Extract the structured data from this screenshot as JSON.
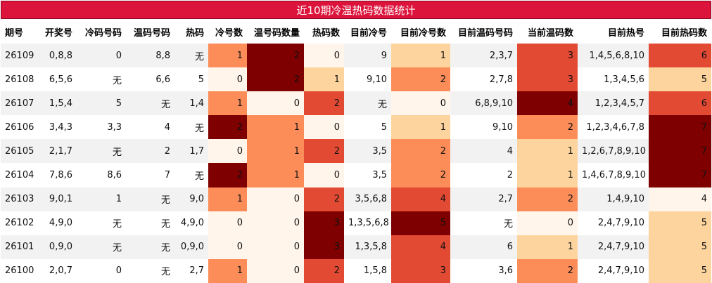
{
  "title": "近10期冷温热码数据统计",
  "headers": [
    "期号",
    "开奖号",
    "冷码号码",
    "温码号码",
    "热码",
    "冷号数",
    "温号码数量",
    "热码数",
    "目前冷号",
    "目前冷号数",
    "目前温码号码",
    "当前温码数",
    "目前热号",
    "目前热码数"
  ],
  "heatmap_columns": [
    5,
    6,
    7,
    9,
    11,
    13
  ],
  "colors": {
    "0": "#fff5eb",
    "1": "#fdd49e",
    "2": "#fc8d59",
    "3": "#e34a33",
    "4": "#b30000",
    "5": "#7f0000"
  },
  "rows": [
    {
      "cells": [
        "26109",
        "0,8,8",
        "0",
        "8,8",
        "无",
        "1",
        "2",
        "0",
        "9",
        "1",
        "2,3,7",
        "3",
        "1,4,5,6,8,10",
        "6"
      ],
      "levels": {
        "5": "2",
        "6": "5",
        "7": "0",
        "9": "1",
        "11": "3",
        "13": "3"
      }
    },
    {
      "cells": [
        "26108",
        "6,5,6",
        "无",
        "6,6",
        "5",
        "0",
        "2",
        "1",
        "9,10",
        "2",
        "2,7,8",
        "3",
        "1,3,4,5,6",
        "5"
      ],
      "levels": {
        "5": "0",
        "6": "5",
        "7": "1",
        "9": "2",
        "11": "3",
        "13": "1"
      }
    },
    {
      "cells": [
        "26107",
        "1,5,4",
        "5",
        "无",
        "1,4",
        "1",
        "0",
        "2",
        "无",
        "0",
        "6,8,9,10",
        "4",
        "1,2,3,4,5,7",
        "6"
      ],
      "levels": {
        "5": "2",
        "6": "0",
        "7": "3",
        "9": "0",
        "11": "5",
        "13": "3"
      }
    },
    {
      "cells": [
        "26106",
        "3,4,3",
        "3,3",
        "4",
        "无",
        "2",
        "1",
        "0",
        "5",
        "1",
        "9,10",
        "2",
        "1,2,3,4,6,7,8",
        "7"
      ],
      "levels": {
        "5": "5",
        "6": "2",
        "7": "0",
        "9": "1",
        "11": "2",
        "13": "5"
      }
    },
    {
      "cells": [
        "26105",
        "2,1,7",
        "无",
        "2",
        "1,7",
        "0",
        "1",
        "2",
        "3,5",
        "2",
        "4",
        "1",
        "1,2,6,7,8,9,10",
        "7"
      ],
      "levels": {
        "5": "0",
        "6": "2",
        "7": "3",
        "9": "2",
        "11": "1",
        "13": "5"
      }
    },
    {
      "cells": [
        "26104",
        "7,8,6",
        "8,6",
        "7",
        "无",
        "2",
        "1",
        "0",
        "3,5",
        "2",
        "2",
        "1",
        "1,4,6,7,8,9,10",
        "7"
      ],
      "levels": {
        "5": "5",
        "6": "2",
        "7": "0",
        "9": "2",
        "11": "1",
        "13": "5"
      }
    },
    {
      "cells": [
        "26103",
        "9,0,1",
        "1",
        "无",
        "9,0",
        "1",
        "0",
        "2",
        "3,5,6,8",
        "4",
        "2,7",
        "2",
        "1,4,9,10",
        "4"
      ],
      "levels": {
        "5": "2",
        "6": "0",
        "7": "3",
        "9": "3",
        "11": "2",
        "13": "0"
      }
    },
    {
      "cells": [
        "26102",
        "4,9,0",
        "无",
        "无",
        "4,9,0",
        "0",
        "0",
        "3",
        "1,3,5,6,8",
        "5",
        "无",
        "0",
        "2,4,7,9,10",
        "5"
      ],
      "levels": {
        "5": "0",
        "6": "0",
        "7": "5",
        "9": "5",
        "11": "0",
        "13": "1"
      }
    },
    {
      "cells": [
        "26101",
        "0,9,0",
        "无",
        "无",
        "0,9,0",
        "0",
        "0",
        "3",
        "1,3,5,8",
        "4",
        "6",
        "1",
        "2,4,7,9,10",
        "5"
      ],
      "levels": {
        "5": "0",
        "6": "0",
        "7": "5",
        "9": "3",
        "11": "1",
        "13": "1"
      }
    },
    {
      "cells": [
        "26100",
        "2,0,7",
        "0",
        "无",
        "2,7",
        "1",
        "0",
        "2",
        "1,5,8",
        "3",
        "3,6",
        "2",
        "2,4,7,9,10",
        "5"
      ],
      "levels": {
        "5": "2",
        "6": "0",
        "7": "3",
        "9": "3",
        "11": "2",
        "13": "1"
      }
    }
  ]
}
